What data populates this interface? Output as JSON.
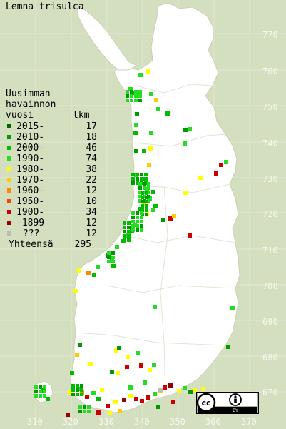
{
  "title": "Lemna trisulca",
  "legend": {
    "heading_lines": [
      "Uusimman",
      "havainnon",
      "vuosi"
    ],
    "count_header": "lkm",
    "items": [
      {
        "label": "2015-",
        "count": "17",
        "color": "#006600"
      },
      {
        "label": "2010-",
        "count": "18",
        "color": "#009900"
      },
      {
        "label": "2000-",
        "count": "46",
        "color": "#00bb00"
      },
      {
        "label": "1990-",
        "count": "74",
        "color": "#22dd22"
      },
      {
        "label": "1980-",
        "count": "38",
        "color": "#ffff00"
      },
      {
        "label": "1970-",
        "count": "22",
        "color": "#ffcc00"
      },
      {
        "label": "1960-",
        "count": "12",
        "color": "#ff8800"
      },
      {
        "label": "1950-",
        "count": "10",
        "color": "#ee4400"
      },
      {
        "label": "1900-",
        "count": "34",
        "color": "#cc0000"
      },
      {
        "label": "-1899",
        "count": "12",
        "color": "#990000"
      },
      {
        "label": "???",
        "count": "12",
        "color": "#bbbbbb"
      }
    ],
    "total_label": "Yhteensä",
    "total_count": "295"
  },
  "grid_y_labels": [
    "770",
    "760",
    "750",
    "740",
    "730",
    "720",
    "710",
    "700",
    "690",
    "680",
    "670"
  ],
  "grid_x_labels": [
    "310",
    "320",
    "330",
    "340",
    "350",
    "360",
    "370"
  ],
  "license_badge": {
    "text": "BY",
    "icons": [
      "cc-icon",
      "attribution-icon"
    ]
  },
  "colors": {
    "background": "#d3dfbe",
    "land": "#ffffff",
    "grid_label": "#f7f7ee"
  }
}
